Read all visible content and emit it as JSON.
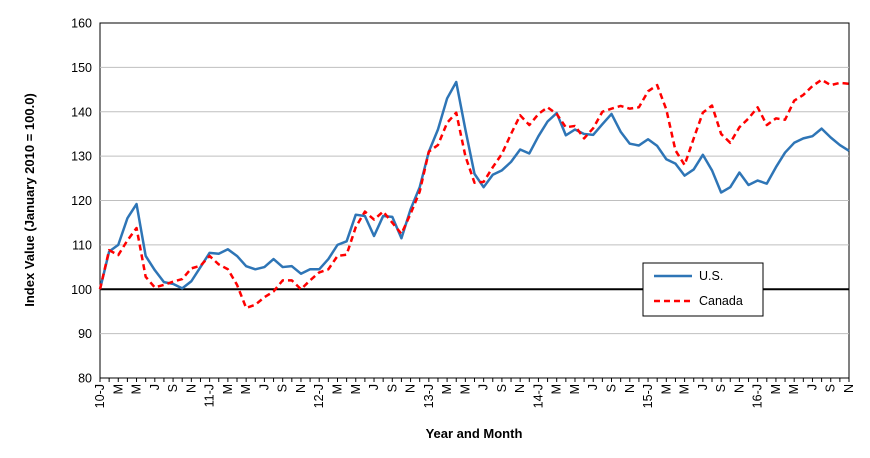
{
  "chart_data": {
    "type": "line",
    "title": "",
    "xlabel": "Year and Month",
    "ylabel": "Index Value (January 2010 = 100.0)",
    "ylim": [
      80,
      160
    ],
    "yticks": [
      "80",
      "90",
      "100",
      "110",
      "120",
      "130",
      "140",
      "150",
      "160"
    ],
    "ytick_values": [
      80,
      90,
      100,
      110,
      120,
      130,
      140,
      150,
      160
    ],
    "grid": "horizontal",
    "reference_line": 100,
    "legend_position": "right",
    "x_tick_labels": [
      "10-J",
      "M",
      "M",
      "J",
      "S",
      "N",
      "11-J",
      "M",
      "M",
      "J",
      "S",
      "N",
      "12-J",
      "M",
      "M",
      "J",
      "S",
      "N",
      "13-J",
      "M",
      "M",
      "J",
      "S",
      "N",
      "14-J",
      "M",
      "M",
      "J",
      "S",
      "N",
      "15-J",
      "M",
      "M",
      "J",
      "S",
      "N",
      "16-J",
      "M",
      "M",
      "J",
      "S",
      "N"
    ],
    "series": [
      {
        "name": "U.S.",
        "color": "#2E75B6",
        "style": "solid",
        "values": [
          100.0,
          108.5,
          110.0,
          116.0,
          119.2,
          107.5,
          104.3,
          101.6,
          101.2,
          100.2,
          101.8,
          105.0,
          108.2,
          108.0,
          109.0,
          107.5,
          105.2,
          104.5,
          105.0,
          106.8,
          105.0,
          105.2,
          103.5,
          104.5,
          104.5,
          106.8,
          110.0,
          110.8,
          116.8,
          116.5,
          112.0,
          116.5,
          116.3,
          111.5,
          118.0,
          123.0,
          131.0,
          136.0,
          143.0,
          146.7,
          136.0,
          126.0,
          123.0,
          125.8,
          126.8,
          128.7,
          131.5,
          130.6,
          134.5,
          137.8,
          139.7,
          134.7,
          136.0,
          135.0,
          134.8,
          137.2,
          139.5,
          135.5,
          132.8,
          132.4,
          133.8,
          132.3,
          129.3,
          128.3,
          125.6,
          127.0,
          130.3,
          126.8,
          121.8,
          123.0,
          126.3,
          123.5,
          124.5,
          123.8,
          127.5,
          130.8,
          133.0,
          134.0,
          134.5,
          136.2,
          134.2,
          132.5,
          131.2
        ]
      },
      {
        "name": "Canada",
        "color": "#FF0000",
        "style": "dashed",
        "values": [
          100.0,
          108.8,
          107.7,
          111.0,
          113.8,
          102.8,
          100.4,
          101.0,
          101.7,
          102.3,
          104.7,
          105.3,
          107.5,
          105.6,
          104.5,
          101.0,
          95.8,
          96.5,
          98.2,
          99.5,
          102.0,
          102.0,
          100.0,
          102.0,
          103.8,
          104.5,
          107.5,
          107.8,
          114.0,
          117.5,
          115.7,
          117.5,
          115.0,
          112.5,
          117.0,
          122.0,
          131.0,
          132.5,
          137.5,
          139.8,
          130.0,
          124.0,
          124.2,
          127.5,
          130.5,
          135.0,
          139.2,
          137.0,
          139.5,
          141.0,
          139.5,
          136.5,
          136.8,
          134.0,
          136.3,
          140.0,
          140.7,
          141.3,
          140.7,
          141.0,
          144.6,
          146.0,
          140.5,
          131.3,
          128.0,
          134.0,
          139.8,
          141.4,
          135.0,
          133.0,
          136.5,
          138.5,
          141.0,
          137.0,
          138.5,
          138.2,
          142.5,
          143.8,
          145.8,
          147.2,
          146.0,
          146.5,
          146.3
        ]
      }
    ]
  }
}
